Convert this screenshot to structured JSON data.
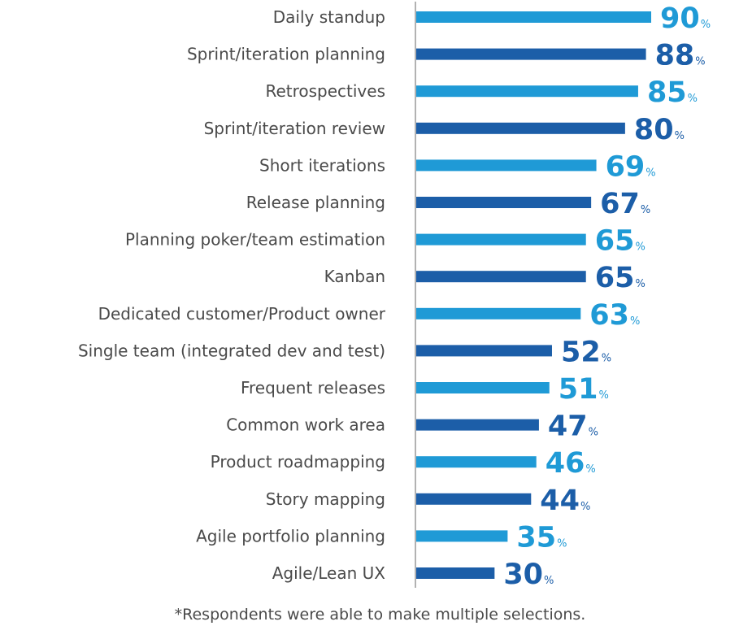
{
  "chart_data": {
    "type": "bar",
    "orientation": "horizontal",
    "categories": [
      "Daily standup",
      "Sprint/iteration planning",
      "Retrospectives",
      "Sprint/iteration review",
      "Short iterations",
      "Release planning",
      "Planning poker/team estimation",
      "Kanban",
      "Dedicated customer/Product owner",
      "Single team (integrated dev and test)",
      "Frequent releases",
      "Common work area",
      "Product roadmapping",
      "Story mapping",
      "Agile portfolio planning",
      "Agile/Lean UX"
    ],
    "values": [
      90,
      88,
      85,
      80,
      69,
      67,
      65,
      65,
      63,
      52,
      51,
      47,
      46,
      44,
      35,
      30
    ],
    "value_suffix": "%",
    "xlim": [
      0,
      90
    ],
    "grid": false,
    "legend": "none",
    "colors": {
      "light": "#1f9ad6",
      "dark": "#1c5ea8",
      "axis": "#999999"
    },
    "color_pattern": [
      "light",
      "dark"
    ],
    "footnote": "*Respondents were able to make multiple selections."
  }
}
